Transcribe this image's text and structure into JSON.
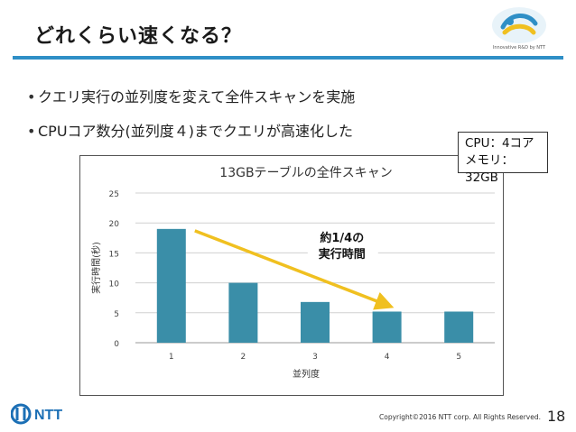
{
  "slide": {
    "title": "どれくらい速くなる？",
    "page_number": "18",
    "copyright": "Copyright©2016  NTT corp. All Rights Reserved.",
    "logo_tagline": "Innovative R&D by NTT",
    "footer_logo_text": "NTT"
  },
  "bullets": [
    {
      "text": "クエリ実行の並列度を変えて全件スキャンを実施"
    },
    {
      "text": "CPUコア数分(並列度４)までクエリが高速化した"
    }
  ],
  "spec": {
    "line1": "CPU：4コア",
    "line2": "メモリ：32GB"
  },
  "annotation": {
    "line1": "約1/4の",
    "line2": "実行時間"
  },
  "colors": {
    "accent_blue": "#2f8fc6",
    "bar_teal": "#3a8ea8",
    "arrow_yellow": "#f0c020"
  },
  "chart_data": {
    "type": "bar",
    "title": "13GBテーブルの全件スキャン",
    "xlabel": "並列度",
    "ylabel": "実行時間(秒)",
    "categories": [
      "1",
      "2",
      "3",
      "4",
      "5"
    ],
    "values": [
      19,
      10,
      6.8,
      5.2,
      5.2
    ],
    "ylim": [
      0,
      25
    ],
    "yticks": [
      "0",
      "5",
      "10",
      "15",
      "20",
      "25"
    ],
    "grid": true,
    "legend": "none"
  }
}
